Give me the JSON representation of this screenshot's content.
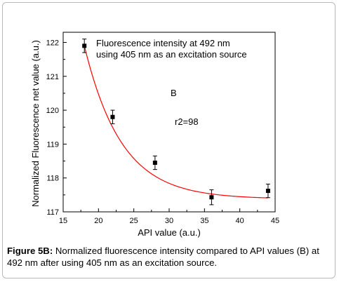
{
  "chart_data": {
    "type": "scatter",
    "title": "",
    "xlabel": "API value (a.u.)",
    "ylabel": "Normalized Fluorescence net value (a.u.)",
    "xlim": [
      15,
      45
    ],
    "ylim": [
      117,
      122.3
    ],
    "xticks": [
      15,
      20,
      25,
      30,
      35,
      40,
      45
    ],
    "yticks": [
      117,
      118,
      119,
      120,
      121,
      122
    ],
    "points": [
      {
        "x": 18,
        "y": 121.9,
        "err": 0.2
      },
      {
        "x": 22,
        "y": 119.8,
        "err": 0.2
      },
      {
        "x": 28,
        "y": 118.45,
        "err": 0.2
      },
      {
        "x": 36,
        "y": 117.43,
        "err": 0.22
      },
      {
        "x": 44,
        "y": 117.62,
        "err": 0.2
      }
    ],
    "fit_curve": {
      "type": "exponential-decay",
      "color": "#ff0000",
      "x_range": [
        18,
        44
      ]
    },
    "grid": false,
    "annotations": [
      "Fluorescence intensity at 492 nm",
      "using 405 nm as an excitation source",
      "B",
      "r2=98"
    ]
  },
  "caption": {
    "label": "Figure 5B:",
    "text": " Normalized fluorescence intensity compared to API values (B) at 492 nm after using 405 nm as an excitation source."
  }
}
